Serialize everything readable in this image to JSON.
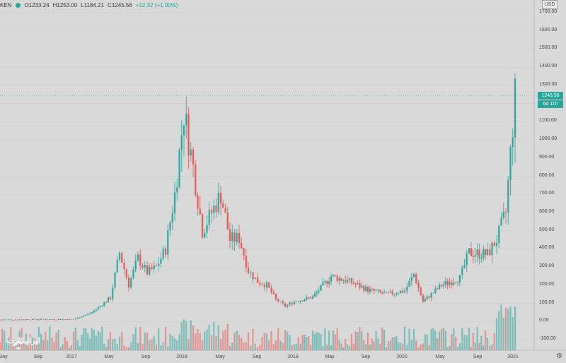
{
  "legend": {
    "symbol": "KEN",
    "open": "O1233.24",
    "high": "H1253.00",
    "low": "L1184.21",
    "close": "C1245.56",
    "change": "+12.32 (+1.00%)"
  },
  "price_axis": {
    "currency": "USD",
    "ticks": [
      "1700.00",
      "1600.00",
      "1500.00",
      "1400.00",
      "1300.00",
      "1200.00",
      "1100.00",
      "1000.00",
      "900.00",
      "800.00",
      "700.00",
      "600.00",
      "500.00",
      "400.00",
      "300.00",
      "200.00",
      "100.00",
      "0.00",
      "-100.00"
    ],
    "current_price": "1245.56",
    "countdown": "6d 11h"
  },
  "time_axis": {
    "ticks": [
      "May",
      "Sep",
      "2017",
      "May",
      "Sep",
      "2018",
      "May",
      "Sep",
      "2019",
      "May",
      "Sep",
      "2020",
      "May",
      "Sep",
      "2021"
    ]
  },
  "watermark": {
    "text": "ایرانیکارت"
  },
  "colors": {
    "up": "#26a69a",
    "down": "#ef5350",
    "background": "#d9d9d9"
  },
  "chart_data": {
    "type": "candlestick",
    "y_range": [
      -100,
      1700
    ],
    "last_price": 1245.56,
    "weekly_closes_approx": [
      {
        "date": "2016-05",
        "close": 10
      },
      {
        "date": "2016-09",
        "close": 12
      },
      {
        "date": "2017-01",
        "close": 12
      },
      {
        "date": "2017-03",
        "close": 50
      },
      {
        "date": "2017-05",
        "close": 130
      },
      {
        "date": "2017-06",
        "close": 380
      },
      {
        "date": "2017-07",
        "close": 200
      },
      {
        "date": "2017-08",
        "close": 350
      },
      {
        "date": "2017-09",
        "close": 270
      },
      {
        "date": "2017-10",
        "close": 300
      },
      {
        "date": "2017-11",
        "close": 400
      },
      {
        "date": "2017-12",
        "close": 700
      },
      {
        "date": "2018-01",
        "close": 1150
      },
      {
        "date": "2018-02",
        "close": 850
      },
      {
        "date": "2018-03",
        "close": 500
      },
      {
        "date": "2018-04",
        "close": 600
      },
      {
        "date": "2018-05",
        "close": 700
      },
      {
        "date": "2018-06",
        "close": 450
      },
      {
        "date": "2018-07",
        "close": 460
      },
      {
        "date": "2018-08",
        "close": 280
      },
      {
        "date": "2018-09",
        "close": 220
      },
      {
        "date": "2018-10",
        "close": 200
      },
      {
        "date": "2018-11",
        "close": 120
      },
      {
        "date": "2018-12",
        "close": 85
      },
      {
        "date": "2019-01",
        "close": 110
      },
      {
        "date": "2019-03",
        "close": 135
      },
      {
        "date": "2019-05",
        "close": 250
      },
      {
        "date": "2019-07",
        "close": 220
      },
      {
        "date": "2019-09",
        "close": 175
      },
      {
        "date": "2019-11",
        "close": 150
      },
      {
        "date": "2020-01",
        "close": 170
      },
      {
        "date": "2020-02",
        "close": 260
      },
      {
        "date": "2020-03",
        "close": 110
      },
      {
        "date": "2020-05",
        "close": 200
      },
      {
        "date": "2020-07",
        "close": 240
      },
      {
        "date": "2020-08",
        "close": 380
      },
      {
        "date": "2020-10",
        "close": 370
      },
      {
        "date": "2020-11",
        "close": 450
      },
      {
        "date": "2020-12",
        "close": 600
      },
      {
        "date": "2021-01",
        "close": 1245.56
      }
    ]
  }
}
